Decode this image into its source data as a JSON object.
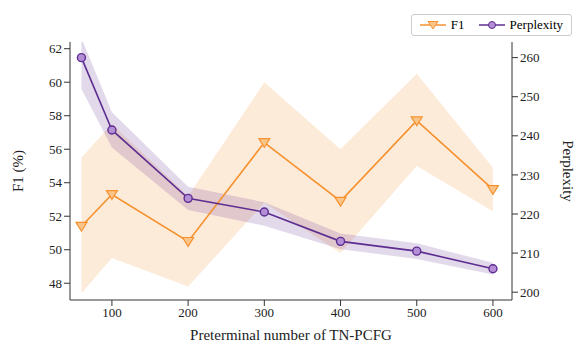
{
  "chart_data": {
    "type": "line",
    "xlabel": "Preterminal number of TN-PCFG",
    "ylabel": "F1 (%)",
    "y2label": "Perplexity",
    "x": [
      60,
      100,
      200,
      300,
      400,
      500,
      600
    ],
    "xlim": [
      45,
      625
    ],
    "xticks": [
      100,
      200,
      300,
      400,
      500,
      600
    ],
    "ylim": [
      47,
      62.4
    ],
    "yticks": [
      48,
      50,
      52,
      54,
      56,
      58,
      60,
      62
    ],
    "y2lim": [
      198,
      264
    ],
    "y2ticks": [
      200,
      210,
      220,
      230,
      240,
      250,
      260
    ],
    "legend": "upper right",
    "series": [
      {
        "name": "F1",
        "color": "#f5922f",
        "marker": "triangle-down",
        "axis": "y",
        "values": [
          51.4,
          53.3,
          50.5,
          56.4,
          52.9,
          57.7,
          53.6
        ],
        "lower": [
          47.4,
          49.5,
          47.8,
          52.8,
          49.8,
          55.0,
          52.3
        ],
        "upper": [
          55.5,
          57.5,
          53.2,
          60.0,
          56.0,
          60.5,
          54.9
        ]
      },
      {
        "name": "Perplexity",
        "color": "#5e2d91",
        "marker": "circle",
        "axis": "y2",
        "values": [
          260,
          241.5,
          224,
          220.5,
          213,
          210.5,
          206
        ],
        "lower": [
          252,
          237,
          221,
          217,
          211,
          208.5,
          204.5
        ],
        "upper": [
          265,
          246,
          227,
          223,
          215,
          212.5,
          207.5
        ]
      }
    ]
  }
}
